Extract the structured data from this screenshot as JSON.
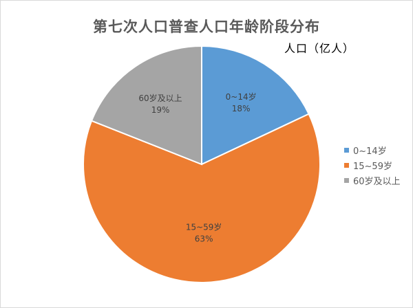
{
  "chart_data": {
    "type": "pie",
    "title": "第七次人口普查人口年龄阶段分布",
    "subtitle": "人口（亿人）",
    "slices": [
      {
        "label": "0~14岁",
        "value": 18,
        "value_label": "18%",
        "color": "#5b9bd5"
      },
      {
        "label": "15~59岁",
        "value": 63,
        "value_label": "63%",
        "color": "#ed7d31"
      },
      {
        "label": "60岁及以上",
        "value": 19,
        "value_label": "19%",
        "color": "#a5a5a5"
      }
    ],
    "start_angle": "top",
    "direction": "clockwise",
    "legend_position": "right"
  }
}
